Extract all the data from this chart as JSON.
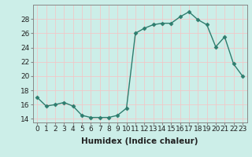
{
  "x": [
    0,
    1,
    2,
    3,
    4,
    5,
    6,
    7,
    8,
    9,
    10,
    11,
    12,
    13,
    14,
    15,
    16,
    17,
    18,
    19,
    20,
    21,
    22,
    23
  ],
  "y": [
    17,
    15.8,
    16,
    16.3,
    15.8,
    14.5,
    14.2,
    14.2,
    14.2,
    14.5,
    15.5,
    26,
    26.7,
    27.2,
    27.4,
    27.4,
    28.3,
    29,
    27.9,
    27.2,
    24.1,
    25.5,
    21.7,
    20
  ],
  "line_color": "#2e7d6e",
  "marker": "D",
  "marker_size": 2.5,
  "bg_color": "#cceee8",
  "grid_color": "#f0c8c8",
  "xlabel": "Humidex (Indice chaleur)",
  "ylim": [
    13.5,
    30.0
  ],
  "xlim": [
    -0.5,
    23.5
  ],
  "yticks": [
    14,
    16,
    18,
    20,
    22,
    24,
    26,
    28
  ],
  "xtick_labels": [
    "0",
    "1",
    "2",
    "3",
    "4",
    "5",
    "6",
    "7",
    "8",
    "9",
    "10",
    "11",
    "12",
    "13",
    "14",
    "15",
    "16",
    "17",
    "18",
    "19",
    "20",
    "21",
    "22",
    "23"
  ],
  "xlabel_fontsize": 7.5,
  "tick_fontsize": 6.5,
  "line_width": 1.0,
  "spine_color": "#888888"
}
